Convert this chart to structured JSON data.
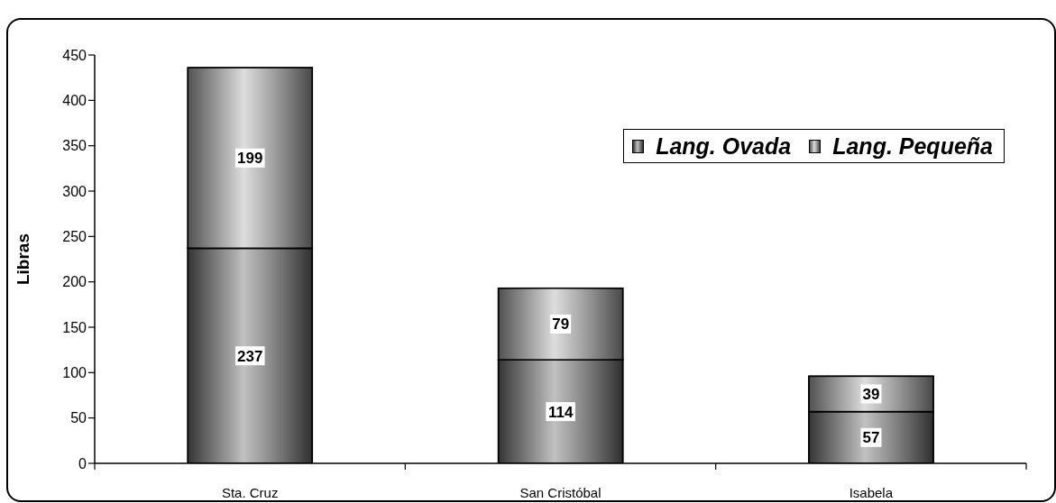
{
  "chart_data": {
    "type": "bar",
    "stacked": true,
    "ylabel": "Libras",
    "categories": [
      "Sta. Cruz",
      "San Cristóbal",
      "Isabela"
    ],
    "series": [
      {
        "name": "Lang. Ovada",
        "color": "#757575",
        "values": [
          237,
          114,
          57
        ]
      },
      {
        "name": "Lang. Pequeña",
        "color": "#b4b4b4",
        "values": [
          199,
          79,
          39
        ]
      }
    ],
    "ylim": [
      0,
      450
    ],
    "yticks": [
      0,
      50,
      100,
      150,
      200,
      250,
      300,
      350,
      400,
      450
    ],
    "data_labels": true,
    "legend": "top right"
  }
}
